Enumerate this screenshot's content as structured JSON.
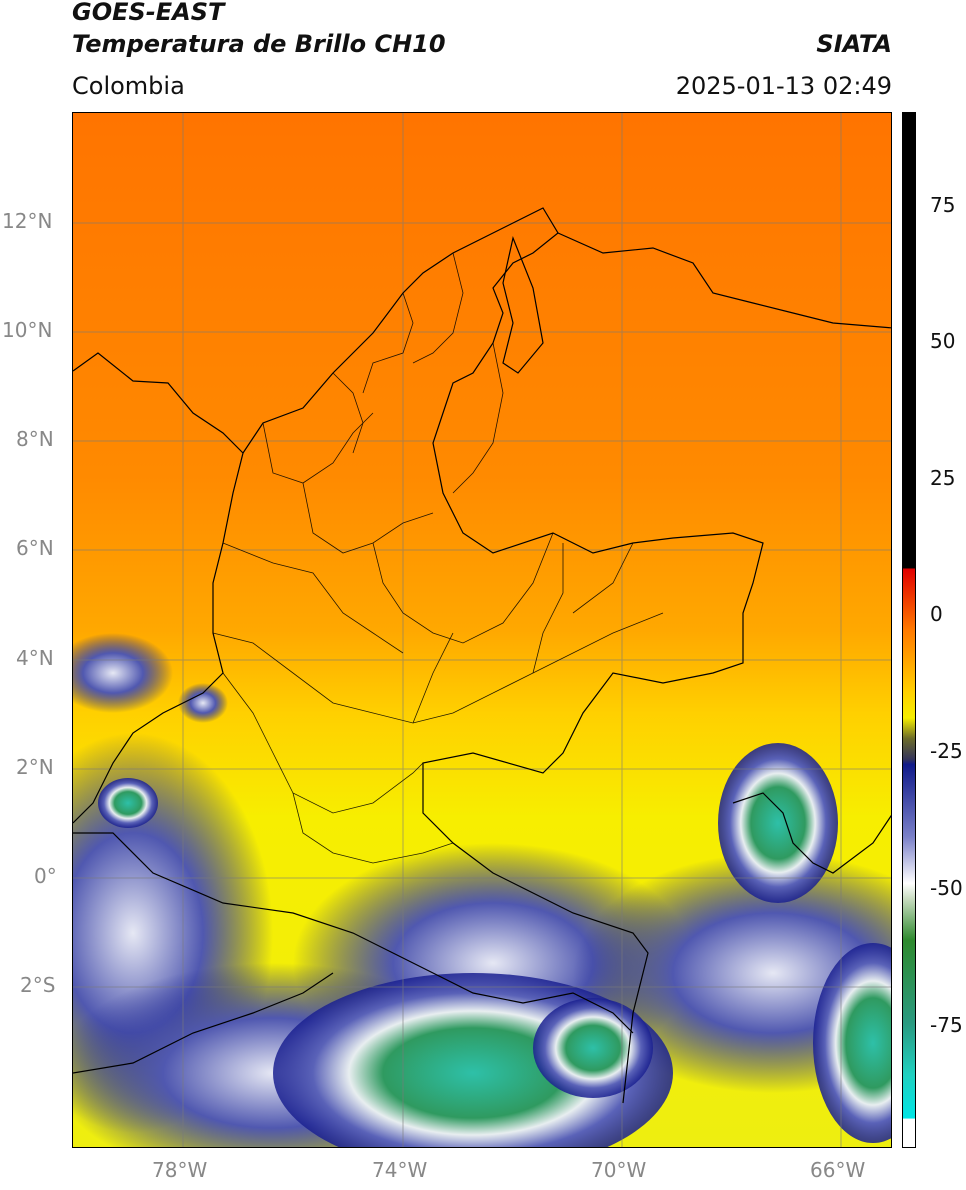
{
  "header": {
    "line1": "GOES-EAST",
    "line2": "Temperatura de Brillo CH10",
    "source": "SIATA",
    "region": "Colombia",
    "datetime": "2025-01-13 02:49"
  },
  "axes": {
    "lat_labels": [
      "12°N",
      "10°N",
      "8°N",
      "6°N",
      "4°N",
      "2°N",
      "0°",
      "2°S"
    ],
    "lon_labels": [
      "78°W",
      "74°W",
      "70°W",
      "66°W"
    ]
  },
  "colorbar": {
    "ticks": [
      "75",
      "50",
      "25",
      "0",
      "-25",
      "-50",
      "-75"
    ],
    "colors": {
      "black": "#000000",
      "red": "#e00000",
      "orange": "#ff7a00",
      "yellow": "#f5ee00",
      "olive": "#6b6b2a",
      "navy": "#101a8a",
      "white": "#ffffff",
      "green": "#2e8a2e",
      "teal": "#20d0c0",
      "cyan": "#00e5e5"
    }
  }
}
